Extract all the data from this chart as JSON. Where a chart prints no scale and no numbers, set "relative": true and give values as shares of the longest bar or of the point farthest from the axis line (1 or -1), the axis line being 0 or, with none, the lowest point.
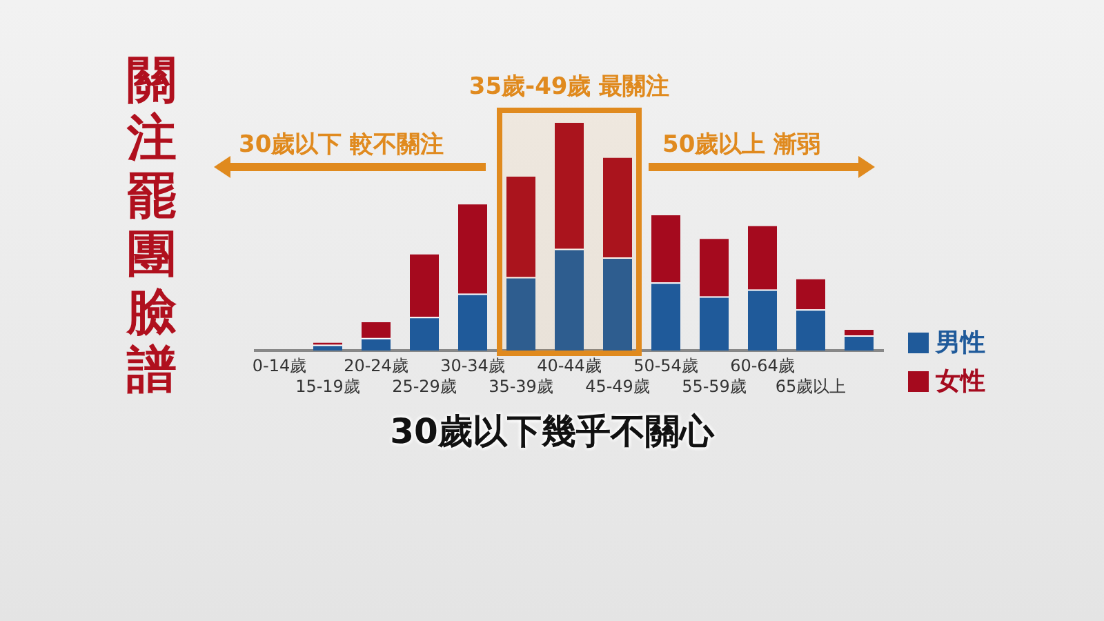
{
  "chart_data": {
    "type": "bar",
    "title": "關注罷團臉譜",
    "stacked": true,
    "relative": true,
    "legend": "right",
    "grid": false,
    "categories": [
      "0-14歲",
      "15-19歲",
      "20-24歲",
      "25-29歲",
      "30-34歲",
      "35-39歲",
      "40-44歲",
      "45-49歲",
      "50-54歲",
      "55-59歲",
      "60-64歲",
      "65歲以上",
      null
    ],
    "series": [
      {
        "name": "男性",
        "color": "#1f5a9a",
        "values": [
          0,
          0.026,
          0.055,
          0.148,
          0.25,
          0.323,
          0.447,
          0.409,
          0.299,
          0.238,
          0.268,
          0.181,
          0.067
        ]
      },
      {
        "name": "女性",
        "color": "#a50a1e",
        "values": [
          0,
          0.008,
          0.069,
          0.274,
          0.392,
          0.441,
          0.553,
          0.437,
          0.295,
          0.252,
          0.278,
          0.132,
          0.024
        ]
      }
    ],
    "bands": [
      {
        "axis": "x",
        "from": "35-39歲",
        "to": "45-49歲",
        "label": "35歲-49歲 最關注",
        "color": "#e08a1e"
      }
    ],
    "annotations": [
      "30歲以下 較不關注",
      "50歲以上 漸弱",
      "30歲以下幾乎不關心"
    ]
  }
}
